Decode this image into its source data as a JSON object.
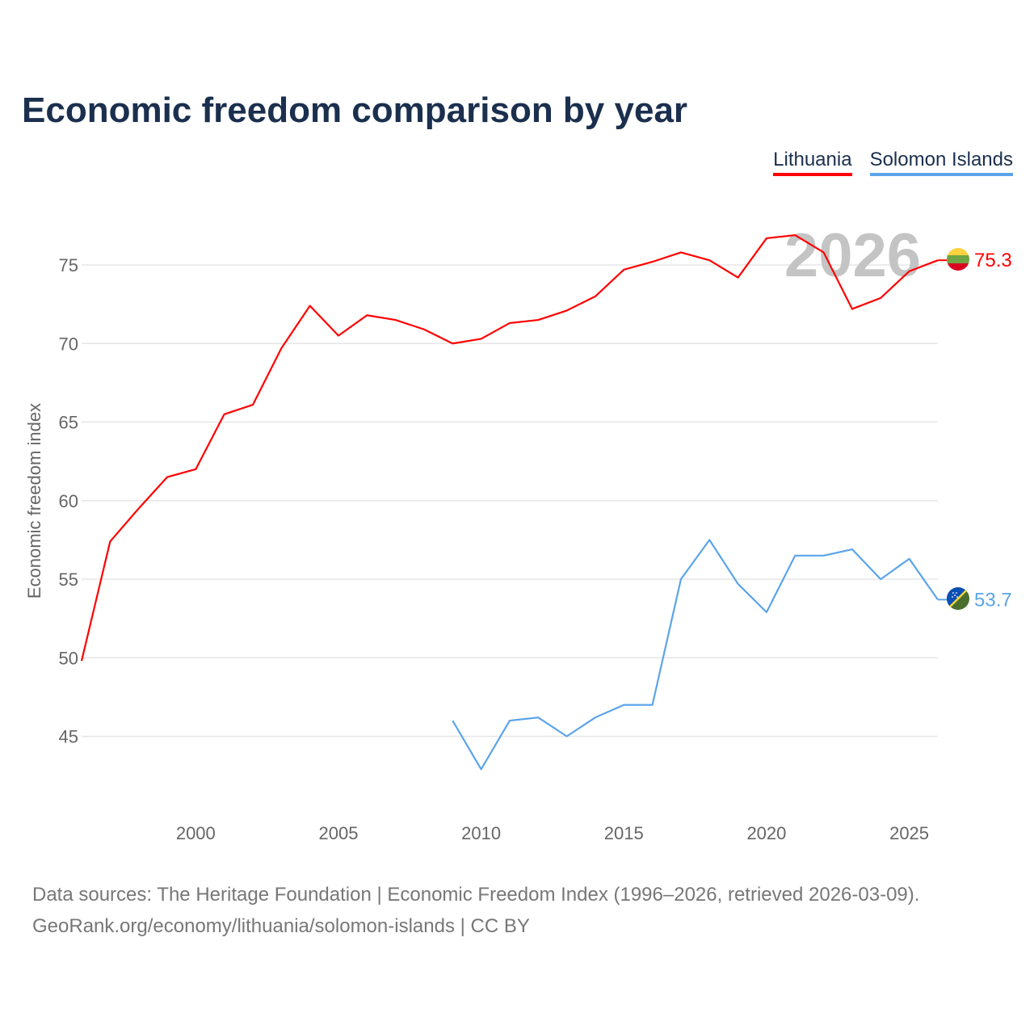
{
  "chart_data": {
    "type": "line",
    "title": "Economic freedom comparison by year",
    "xlabel": "",
    "ylabel": "Economic freedom index",
    "xlim": [
      1996,
      2026
    ],
    "ylim": [
      41,
      78
    ],
    "x_ticks": [
      2000,
      2005,
      2010,
      2015,
      2020,
      2025
    ],
    "y_ticks": [
      45,
      50,
      55,
      60,
      65,
      70,
      75
    ],
    "grid": true,
    "legend_position": "top-right",
    "year_watermark": "2026",
    "series": [
      {
        "name": "Lithuania",
        "color": "#ff0000",
        "end_label": "75.3",
        "x": [
          1996,
          1997,
          1998,
          1999,
          2000,
          2001,
          2002,
          2003,
          2004,
          2005,
          2006,
          2007,
          2008,
          2009,
          2010,
          2011,
          2012,
          2013,
          2014,
          2015,
          2016,
          2017,
          2018,
          2019,
          2020,
          2021,
          2022,
          2023,
          2024,
          2025,
          2026
        ],
        "values": [
          49.8,
          57.4,
          59.5,
          61.5,
          62.0,
          65.5,
          66.1,
          69.7,
          72.4,
          70.5,
          71.8,
          71.5,
          70.9,
          70.0,
          70.3,
          71.3,
          71.5,
          72.1,
          73.0,
          74.7,
          75.2,
          75.8,
          75.3,
          74.2,
          76.7,
          76.9,
          75.8,
          72.2,
          72.9,
          74.6,
          75.3
        ]
      },
      {
        "name": "Solomon Islands",
        "color": "#5ba4ea",
        "end_label": "53.7",
        "x": [
          2009,
          2010,
          2011,
          2012,
          2013,
          2014,
          2015,
          2016,
          2017,
          2018,
          2019,
          2020,
          2021,
          2022,
          2023,
          2024,
          2025,
          2026
        ],
        "values": [
          46.0,
          42.9,
          46.0,
          46.2,
          45.0,
          46.2,
          47.0,
          47.0,
          55.0,
          57.5,
          54.7,
          52.9,
          56.5,
          56.5,
          56.9,
          55.0,
          56.3,
          53.7
        ]
      }
    ]
  },
  "footer": {
    "line1": "Data sources: The Heritage Foundation | Economic Freedom Index (1996–2026, retrieved 2026-03-09).",
    "line2": "GeoRank.org/economy/lithuania/solomon-islands | CC BY"
  }
}
